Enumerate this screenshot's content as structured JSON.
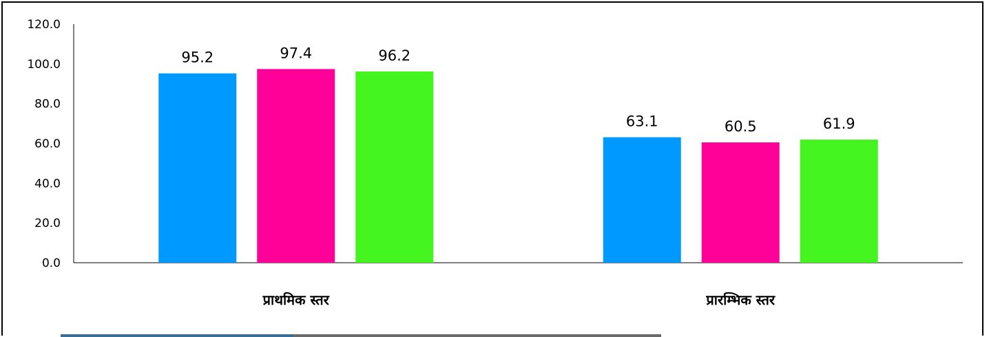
{
  "chart_data": {
    "type": "bar",
    "categories": [
      "प्राथमिक स्तर",
      "प्रारम्भिक स्तर"
    ],
    "series": [
      {
        "values": [
          95.2,
          63.1
        ],
        "color": "#0099ff"
      },
      {
        "values": [
          97.4,
          60.5
        ],
        "color": "#ff0099"
      },
      {
        "values": [
          96.2,
          61.9
        ],
        "color": "#44f51f"
      }
    ],
    "yticks": [
      "0.0",
      "20.0",
      "40.0",
      "60.0",
      "80.0",
      "100.0",
      "120.0"
    ],
    "ylim": [
      0,
      120
    ],
    "grid": false,
    "legend": "none"
  }
}
